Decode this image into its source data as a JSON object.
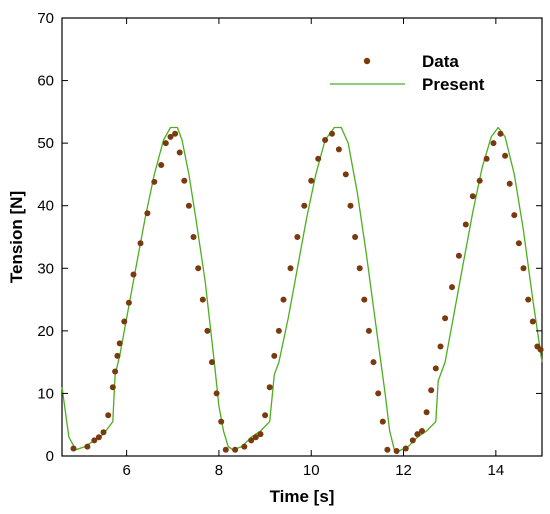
{
  "chart_data": {
    "type": "scatter",
    "xlabel": "Time [s]",
    "ylabel": "Tension [N]",
    "xlim": [
      4.6,
      15.0
    ],
    "ylim": [
      0,
      70
    ],
    "x_ticks": [
      6,
      8,
      10,
      12,
      14
    ],
    "x_tick_labels": [
      "6",
      "8",
      "10",
      "12",
      "14"
    ],
    "y_ticks": [
      0,
      10,
      20,
      30,
      40,
      50,
      60,
      70
    ],
    "y_tick_labels": [
      "0",
      "10",
      "20",
      "30",
      "40",
      "50",
      "60",
      "70"
    ],
    "grid": false,
    "legend_position": "top-right",
    "series": [
      {
        "name": "Data",
        "style": "markers",
        "color": "#7a3a10",
        "x": [
          4.85,
          5.15,
          5.3,
          5.4,
          5.5,
          5.6,
          5.7,
          5.75,
          5.8,
          5.85,
          5.95,
          6.05,
          6.15,
          6.3,
          6.45,
          6.6,
          6.75,
          6.85,
          6.95,
          7.05,
          7.15,
          7.25,
          7.35,
          7.45,
          7.55,
          7.65,
          7.75,
          7.85,
          7.95,
          8.05,
          8.15,
          8.35,
          8.55,
          8.7,
          8.8,
          8.9,
          9.0,
          9.1,
          9.2,
          9.3,
          9.4,
          9.55,
          9.7,
          9.85,
          10.0,
          10.15,
          10.3,
          10.45,
          10.6,
          10.75,
          10.85,
          10.95,
          11.05,
          11.15,
          11.25,
          11.35,
          11.45,
          11.55,
          11.65,
          11.85,
          12.05,
          12.2,
          12.3,
          12.4,
          12.5,
          12.6,
          12.7,
          12.8,
          12.9,
          13.05,
          13.2,
          13.35,
          13.5,
          13.65,
          13.8,
          13.95,
          14.1,
          14.2,
          14.3,
          14.4,
          14.5,
          14.6,
          14.7,
          14.8,
          14.9,
          14.97
        ],
        "y": [
          1.2,
          1.5,
          2.5,
          3.0,
          3.8,
          6.5,
          11.0,
          13.5,
          16.0,
          18.0,
          21.5,
          24.5,
          29.0,
          34.0,
          38.8,
          43.8,
          46.5,
          50.0,
          51.0,
          51.5,
          48.5,
          44.0,
          40.0,
          35.0,
          30.0,
          25.0,
          20.0,
          15.0,
          10.0,
          5.5,
          1.0,
          1.0,
          1.5,
          2.5,
          3.0,
          3.5,
          6.5,
          11.0,
          16.0,
          20.0,
          25.0,
          30.0,
          35.0,
          40.0,
          44.0,
          47.5,
          50.5,
          51.5,
          49.0,
          45.0,
          40.0,
          35.0,
          30.0,
          25.0,
          20.0,
          15.0,
          10.0,
          5.5,
          1.0,
          0.8,
          1.2,
          2.5,
          3.5,
          4.0,
          7.0,
          10.5,
          14.0,
          17.5,
          22.0,
          27.0,
          32.0,
          37.0,
          41.5,
          44.0,
          47.5,
          50.0,
          51.5,
          48.0,
          43.5,
          38.5,
          34.0,
          30.0,
          25.0,
          21.5,
          17.5,
          17.0
        ]
      },
      {
        "name": "Present",
        "style": "line",
        "color": "#4caf1e",
        "x": [
          4.6,
          4.75,
          4.9,
          5.1,
          5.3,
          5.5,
          5.7,
          5.75,
          5.85,
          6.0,
          6.2,
          6.4,
          6.6,
          6.8,
          6.95,
          7.1,
          7.2,
          7.35,
          7.5,
          7.7,
          7.9,
          8.0,
          8.1,
          8.2,
          8.3,
          8.5,
          8.7,
          8.9,
          9.1,
          9.2,
          9.3,
          9.5,
          9.7,
          9.9,
          10.1,
          10.3,
          10.5,
          10.65,
          10.8,
          11.0,
          11.2,
          11.4,
          11.6,
          11.7,
          11.8,
          11.9,
          12.1,
          12.3,
          12.5,
          12.7,
          12.75,
          12.9,
          13.1,
          13.3,
          13.5,
          13.7,
          13.9,
          14.05,
          14.2,
          14.4,
          14.6,
          14.8,
          15.0
        ],
        "y": [
          11.0,
          3.0,
          1.0,
          1.5,
          2.5,
          3.5,
          5.5,
          13.0,
          16.0,
          22.0,
          30.0,
          38.0,
          45.0,
          50.5,
          52.5,
          52.5,
          50.5,
          45.0,
          38.0,
          28.0,
          15.0,
          8.0,
          4.0,
          1.5,
          1.0,
          1.5,
          3.0,
          4.0,
          5.5,
          13.0,
          15.0,
          22.0,
          30.0,
          38.0,
          45.0,
          50.5,
          52.5,
          52.5,
          50.0,
          42.0,
          32.0,
          21.0,
          10.0,
          4.0,
          1.0,
          0.8,
          1.5,
          3.0,
          4.0,
          5.5,
          12.0,
          15.0,
          23.0,
          31.0,
          39.0,
          46.0,
          51.0,
          52.5,
          51.0,
          45.0,
          36.0,
          25.0,
          15.0
        ]
      }
    ]
  }
}
